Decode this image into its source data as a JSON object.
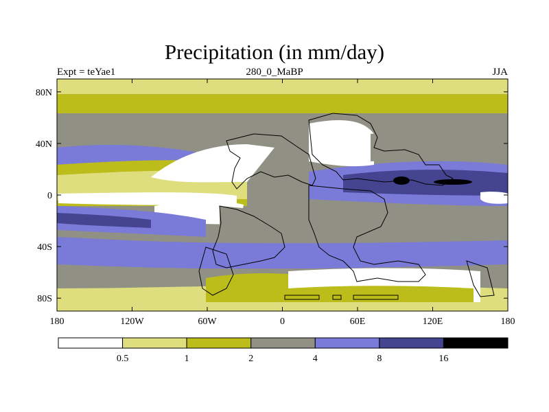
{
  "title": "Precipitation (in mm/day)",
  "subtitle_left": "Expt = teYae1",
  "subtitle_center": "280_0_MaBP",
  "subtitle_right": "JJA",
  "map": {
    "lon_ticks": [
      "180",
      "120W",
      "60W",
      "0",
      "60E",
      "120E",
      "180"
    ],
    "lat_ticks": [
      "80N",
      "40N",
      "0",
      "40S",
      "80S"
    ]
  },
  "colorbar": {
    "labels": [
      "0.5",
      "1",
      "2",
      "4",
      "8",
      "16"
    ],
    "colors": [
      "#ffffff",
      "#dede7e",
      "#bcbc1a",
      "#909084",
      "#7a7ad8",
      "#444490",
      "#000000"
    ]
  }
}
